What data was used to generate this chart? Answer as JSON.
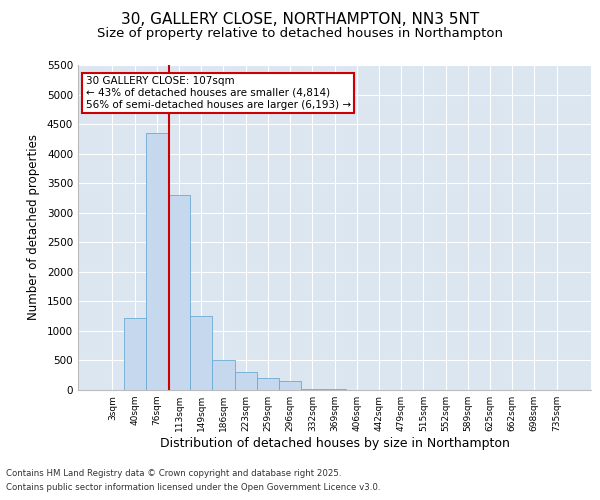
{
  "title1": "30, GALLERY CLOSE, NORTHAMPTON, NN3 5NT",
  "title2": "Size of property relative to detached houses in Northampton",
  "xlabel": "Distribution of detached houses by size in Northampton",
  "ylabel": "Number of detached properties",
  "footer1": "Contains HM Land Registry data © Crown copyright and database right 2025.",
  "footer2": "Contains public sector information licensed under the Open Government Licence v3.0.",
  "annotation_line1": "30 GALLERY CLOSE: 107sqm",
  "annotation_line2": "← 43% of detached houses are smaller (4,814)",
  "annotation_line3": "56% of semi-detached houses are larger (6,193) →",
  "bar_categories": [
    "3sqm",
    "40sqm",
    "76sqm",
    "113sqm",
    "149sqm",
    "186sqm",
    "223sqm",
    "259sqm",
    "296sqm",
    "332sqm",
    "369sqm",
    "406sqm",
    "442sqm",
    "479sqm",
    "515sqm",
    "552sqm",
    "589sqm",
    "625sqm",
    "662sqm",
    "698sqm",
    "735sqm"
  ],
  "bar_values": [
    0,
    1220,
    4350,
    3300,
    1250,
    500,
    300,
    200,
    150,
    20,
    10,
    5,
    0,
    0,
    0,
    0,
    0,
    0,
    0,
    0,
    0
  ],
  "bar_color": "#c5d8ed",
  "bar_edge_color": "#6aaad4",
  "vline_x_index": 2.57,
  "vline_color": "#cc0000",
  "ylim": [
    0,
    5500
  ],
  "yticks": [
    0,
    500,
    1000,
    1500,
    2000,
    2500,
    3000,
    3500,
    4000,
    4500,
    5000,
    5500
  ],
  "bg_color": "#dce6f1",
  "grid_color": "#ffffff",
  "title1_fontsize": 11,
  "title2_fontsize": 9.5,
  "xlabel_fontsize": 9,
  "ylabel_fontsize": 8.5,
  "annotation_box_color": "#cc0000",
  "annotation_fontsize": 7.5
}
